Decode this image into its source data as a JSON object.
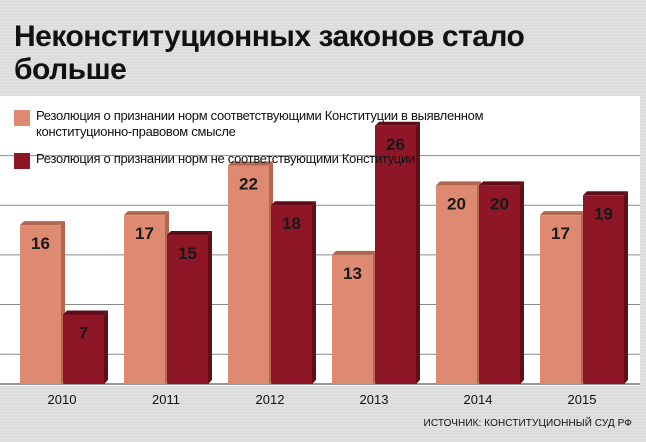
{
  "title": "Неконституционных законов стало больше",
  "colors": {
    "series1": "#de8a70",
    "series1_shadow": "#b06752",
    "series2": "#8e1626",
    "series2_shadow": "#5e0e19",
    "label": "#1a1a1a",
    "grid": "#8c8c8c"
  },
  "legend": [
    {
      "label": "Резолюция о признании норм соответствующими Конституции в выявленном конституционно-правовом смысле"
    },
    {
      "label": "Резолюция о признании норм не соответствующими Конституции"
    }
  ],
  "source": "ИСТОЧНИК: КОНСТИТУЦИОННЫЙ СУД РФ",
  "chart_data": {
    "type": "bar",
    "title": "Неконституционных законов стало больше",
    "categories": [
      "2010",
      "2011",
      "2012",
      "2013",
      "2014",
      "2015"
    ],
    "series": [
      {
        "name": "Резолюция о признании норм соответствующими Конституции в выявленном конституционно-правовом смысле",
        "values": [
          16,
          17,
          22,
          13,
          20,
          17
        ]
      },
      {
        "name": "Резолюция о признании норм не соответствующими Конституции",
        "values": [
          7,
          15,
          18,
          26,
          20,
          19
        ]
      }
    ],
    "ylim": [
      0,
      29
    ],
    "grid": true,
    "legend": "top-left"
  }
}
